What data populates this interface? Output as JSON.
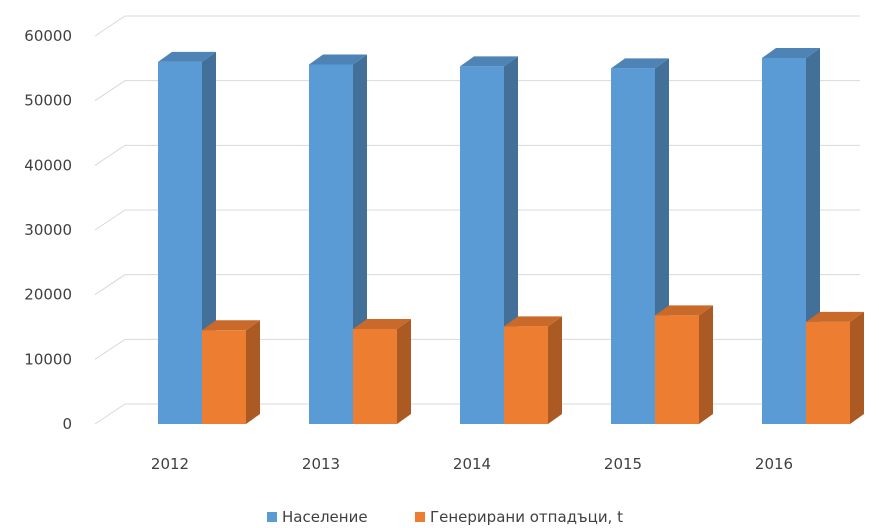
{
  "chart_data": {
    "type": "bar",
    "title": "",
    "xlabel": "",
    "ylabel": "",
    "categories": [
      "2012",
      "2013",
      "2014",
      "2015",
      "2016"
    ],
    "series": [
      {
        "name": "Население",
        "values": [
          56000,
          55600,
          55300,
          55000,
          56600
        ],
        "color": "#5b9bd5"
      },
      {
        "name": "Генерирани отпадъци, t",
        "values": [
          14500,
          14700,
          15100,
          16800,
          15800
        ],
        "color": "#ed7d31"
      }
    ],
    "ylim": [
      0,
      60000
    ],
    "yticks": [
      0,
      10000,
      20000,
      30000,
      40000,
      50000,
      60000
    ],
    "grid": true,
    "legend_position": "bottom",
    "style": "3d-column"
  }
}
